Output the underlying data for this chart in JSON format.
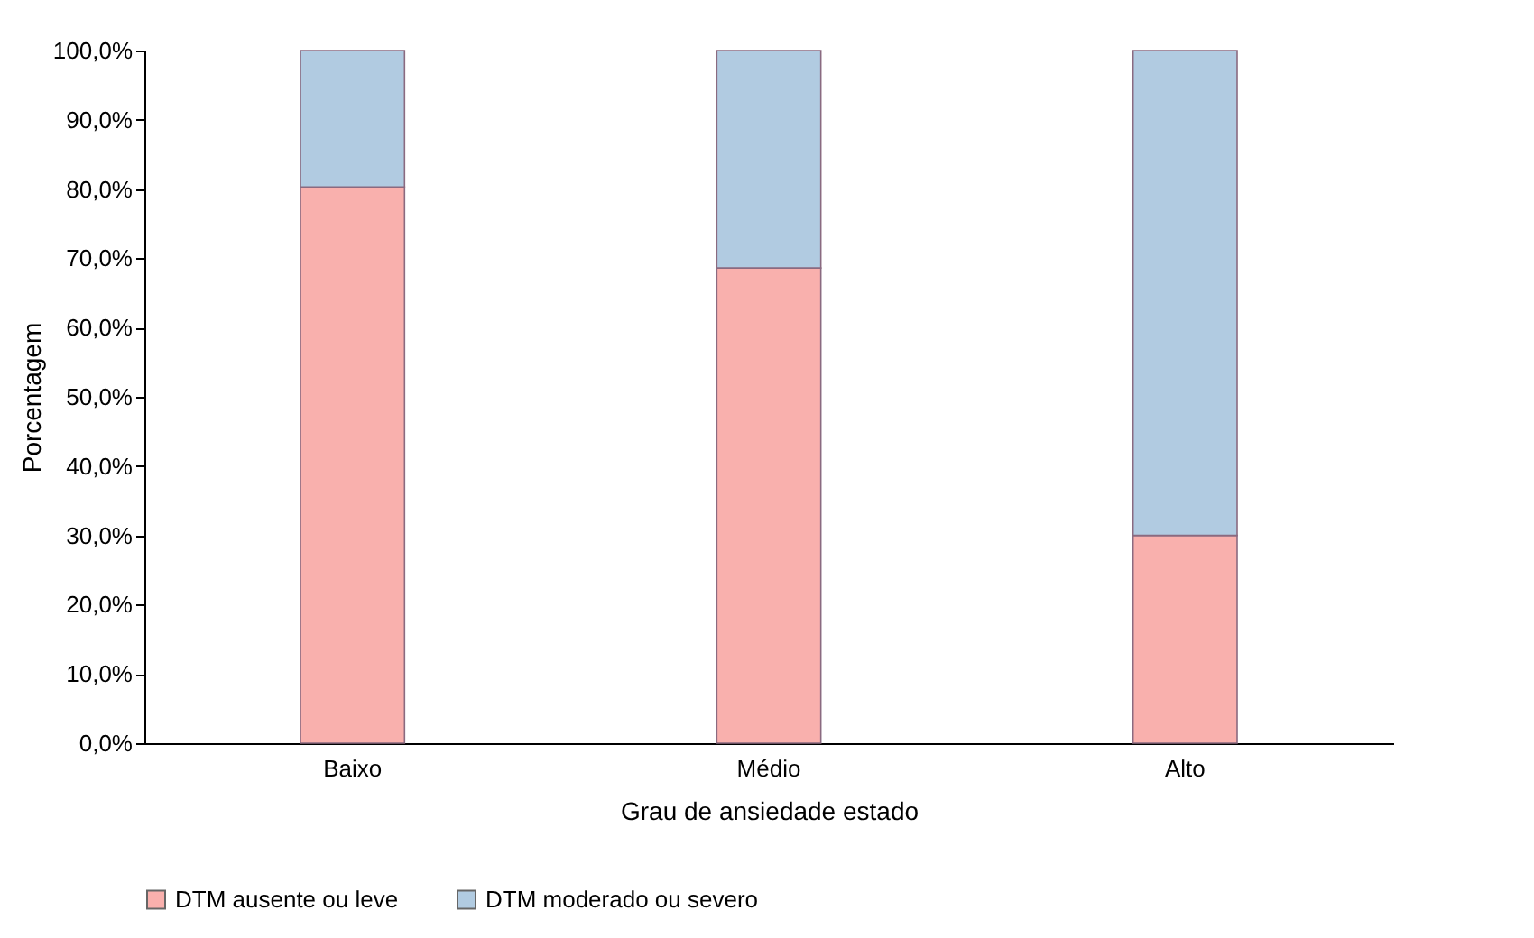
{
  "chart_data": {
    "type": "bar",
    "stacked": true,
    "xlabel": "Grau de ansiedade estado",
    "ylabel": "Porcentagem",
    "categories": [
      "Baixo",
      "Médio",
      "Alto"
    ],
    "series": [
      {
        "name": "DTM ausente ou leve",
        "color": "#f9b0ad",
        "values": [
          80.3,
          68.6,
          30.0
        ]
      },
      {
        "name": "DTM moderado ou severo",
        "color": "#b1cbe1",
        "values": [
          19.7,
          31.4,
          70.0
        ]
      }
    ],
    "ylim": [
      0,
      100
    ],
    "yticks": [
      {
        "value": 0,
        "label": "0,0%"
      },
      {
        "value": 10,
        "label": "10,0%"
      },
      {
        "value": 20,
        "label": "20,0%"
      },
      {
        "value": 30,
        "label": "30,0%"
      },
      {
        "value": 40,
        "label": "40,0%"
      },
      {
        "value": 50,
        "label": "50,0%"
      },
      {
        "value": 60,
        "label": "60,0%"
      },
      {
        "value": 70,
        "label": "70,0%"
      },
      {
        "value": 80,
        "label": "80,0%"
      },
      {
        "value": 90,
        "label": "90,0%"
      },
      {
        "value": 100,
        "label": "100,0%"
      }
    ],
    "grid": false,
    "legend": "bottom"
  }
}
